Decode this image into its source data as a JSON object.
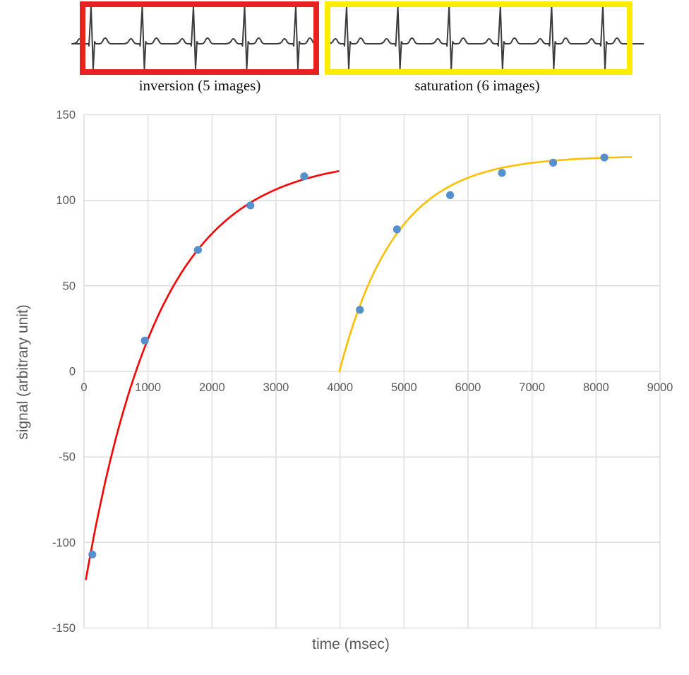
{
  "ecg": {
    "trace_color": "#3c3c3c",
    "panels": [
      {
        "id": "inversion",
        "label": "inversion (5 images)",
        "box_color": "#e9211f",
        "beat_count": 5
      },
      {
        "id": "saturation",
        "label": "saturation (6 images)",
        "box_color": "#ffec00",
        "beat_count": 6
      }
    ]
  },
  "chart_data": {
    "type": "scatter",
    "title": "",
    "xlabel": "time (msec)",
    "ylabel": "signal (arbitrary unit)",
    "xlim": [
      0,
      9000
    ],
    "ylim": [
      -150,
      150
    ],
    "xticks": [
      0,
      1000,
      2000,
      3000,
      4000,
      5000,
      6000,
      7000,
      8000,
      9000
    ],
    "yticks": [
      150,
      100,
      50,
      0,
      -50,
      -100,
      -150
    ],
    "grid": true,
    "legend": "none",
    "gridline_color": "#d9d9d9",
    "tick_label_color": "#595959",
    "axis_title_color": "#595959",
    "marker_color": "#5590cc",
    "series": [
      {
        "name": "inversion recovery",
        "line_color": "#fe0000",
        "points": [
          [
            130,
            -107
          ],
          [
            950,
            18
          ],
          [
            1780,
            71
          ],
          [
            2600,
            97
          ],
          [
            3440,
            114
          ]
        ],
        "fit_curve": {
          "model": "A - B*exp(-t/T)",
          "A": 125,
          "B": 253,
          "T": 1150,
          "t_start": 30,
          "t_end": 3975
        }
      },
      {
        "name": "saturation recovery",
        "line_color": "#febf00",
        "points": [
          [
            4310,
            36
          ],
          [
            4890,
            83
          ],
          [
            5720,
            103
          ],
          [
            6530,
            116
          ],
          [
            7330,
            122
          ],
          [
            8130,
            125
          ]
        ],
        "fit_curve": {
          "model": "A*(1-exp(-(t-t0)/T))",
          "A": 126,
          "t0": 3990,
          "T": 880,
          "t_start": 3990,
          "t_end": 8550
        }
      }
    ]
  }
}
